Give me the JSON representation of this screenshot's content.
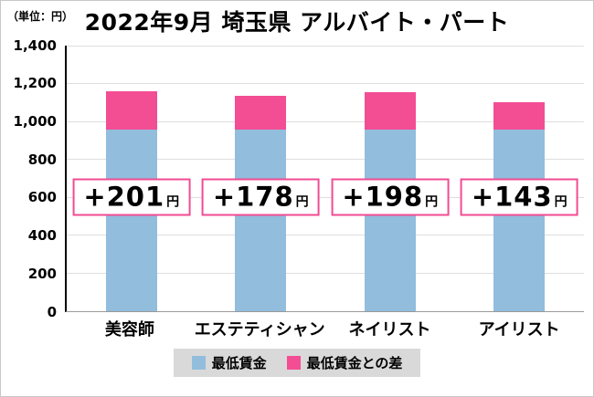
{
  "unit_label": "（単位：円）",
  "title": "2022年9月 埼玉県 アルバイト・パート",
  "chart_data": {
    "type": "bar",
    "stacked": true,
    "title": "2022年9月 埼玉県 アルバイト・パート",
    "unit": "（単位：円）",
    "categories": [
      "美容師",
      "エステティシャン",
      "ネイリスト",
      "アイリスト"
    ],
    "series": [
      {
        "name": "最低賃金",
        "color": "#92bddc",
        "values": [
          956,
          956,
          956,
          956
        ]
      },
      {
        "name": "最低賃金との差",
        "color": "#f34d94",
        "values": [
          201,
          178,
          198,
          143
        ]
      }
    ],
    "totals": [
      1157,
      1134,
      1154,
      1099
    ],
    "annotations": [
      {
        "value": "+201",
        "suffix": "円"
      },
      {
        "value": "+178",
        "suffix": "円"
      },
      {
        "value": "+198",
        "suffix": "円"
      },
      {
        "value": "+143",
        "suffix": "円"
      }
    ],
    "annotation_y": 600,
    "ylim": [
      0,
      1400
    ],
    "ytick_step": 200,
    "yticks": [
      "1,400",
      "1,200",
      "1,000",
      "800",
      "600",
      "400",
      "200",
      "0"
    ],
    "grid": true,
    "legend_position": "bottom"
  }
}
